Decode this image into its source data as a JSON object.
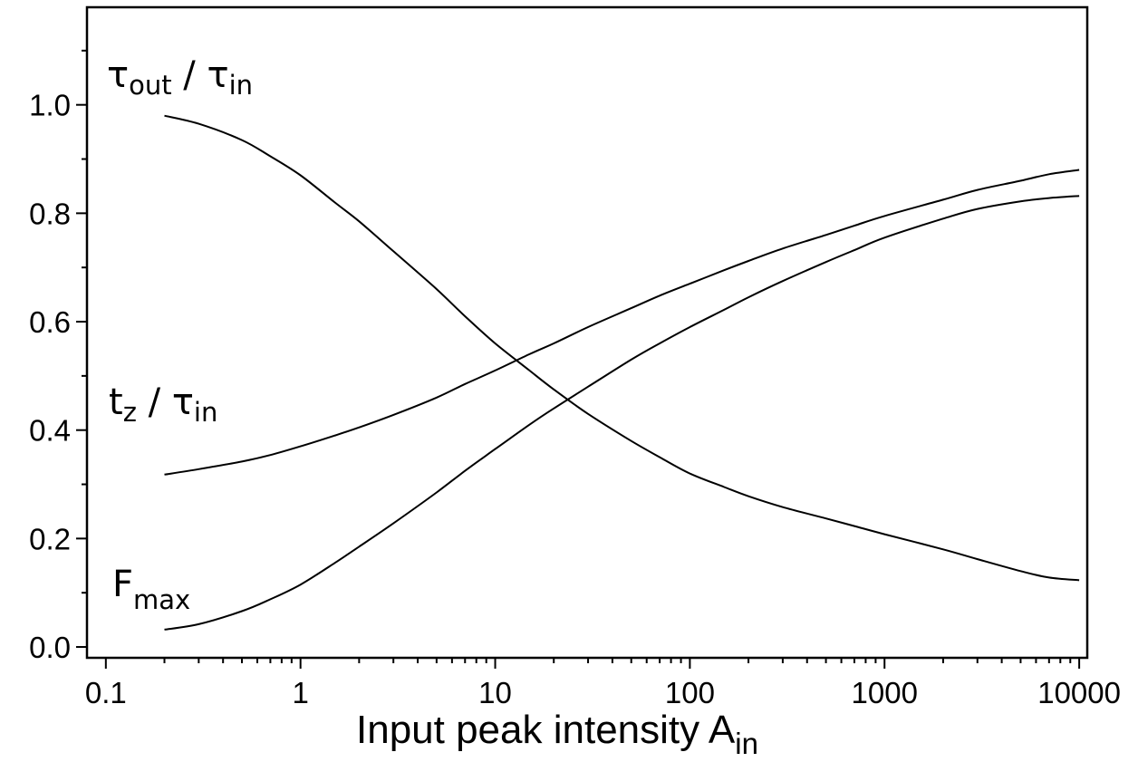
{
  "chart_data": {
    "type": "line",
    "title": "",
    "xlabel": {
      "main": "Input peak intensity A",
      "sub": "in"
    },
    "ylabel": "",
    "x_scale": "log",
    "xlim": [
      0.08,
      11000
    ],
    "ylim": [
      -0.02,
      1.18
    ],
    "x_ticks": [
      0.1,
      1,
      10,
      100,
      1000,
      10000
    ],
    "x_tick_labels": [
      "0.1",
      "1",
      "10",
      "100",
      "1000",
      "10000"
    ],
    "y_ticks": [
      0.0,
      0.2,
      0.4,
      0.6,
      0.8,
      1.0
    ],
    "y_tick_labels": [
      "0.0",
      "0.2",
      "0.4",
      "0.6",
      "0.8",
      "1.0"
    ],
    "grid": false,
    "legend": "none",
    "series": [
      {
        "key": "tau_ratio",
        "label": {
          "sym": "τ",
          "sub1": "out",
          "mid": " / τ",
          "sub2": "in"
        },
        "x": [
          0.2,
          0.3,
          0.5,
          0.7,
          1,
          1.5,
          2,
          3,
          5,
          7,
          10,
          15,
          20,
          30,
          50,
          70,
          100,
          150,
          200,
          300,
          500,
          700,
          1000,
          2000,
          3000,
          5000,
          7000,
          10000
        ],
        "y": [
          0.98,
          0.965,
          0.935,
          0.905,
          0.87,
          0.82,
          0.785,
          0.73,
          0.66,
          0.61,
          0.56,
          0.51,
          0.475,
          0.43,
          0.38,
          0.35,
          0.32,
          0.295,
          0.278,
          0.258,
          0.237,
          0.223,
          0.208,
          0.18,
          0.162,
          0.14,
          0.128,
          0.123
        ]
      },
      {
        "key": "tz_ratio",
        "label": {
          "sym": "t",
          "sub1": "z",
          "mid": " / τ",
          "sub2": "in"
        },
        "x": [
          0.2,
          0.3,
          0.5,
          0.7,
          1,
          1.5,
          2,
          3,
          5,
          7,
          10,
          15,
          20,
          30,
          50,
          70,
          100,
          150,
          200,
          300,
          500,
          700,
          1000,
          2000,
          3000,
          5000,
          7000,
          10000
        ],
        "y": [
          0.318,
          0.328,
          0.342,
          0.354,
          0.37,
          0.39,
          0.405,
          0.428,
          0.46,
          0.485,
          0.51,
          0.54,
          0.56,
          0.59,
          0.625,
          0.648,
          0.67,
          0.695,
          0.712,
          0.735,
          0.76,
          0.777,
          0.795,
          0.825,
          0.843,
          0.86,
          0.872,
          0.88
        ]
      },
      {
        "key": "fmax",
        "label": {
          "sym": "F",
          "sub1": "max",
          "mid": "",
          "sub2": ""
        },
        "x": [
          0.2,
          0.3,
          0.5,
          0.7,
          1,
          1.5,
          2,
          3,
          5,
          7,
          10,
          15,
          20,
          30,
          50,
          70,
          100,
          150,
          200,
          300,
          500,
          700,
          1000,
          2000,
          3000,
          5000,
          7000,
          10000
        ],
        "y": [
          0.032,
          0.042,
          0.066,
          0.088,
          0.115,
          0.155,
          0.185,
          0.228,
          0.285,
          0.325,
          0.365,
          0.41,
          0.44,
          0.48,
          0.53,
          0.56,
          0.59,
          0.622,
          0.645,
          0.675,
          0.71,
          0.732,
          0.755,
          0.79,
          0.808,
          0.822,
          0.828,
          0.832
        ]
      }
    ]
  }
}
